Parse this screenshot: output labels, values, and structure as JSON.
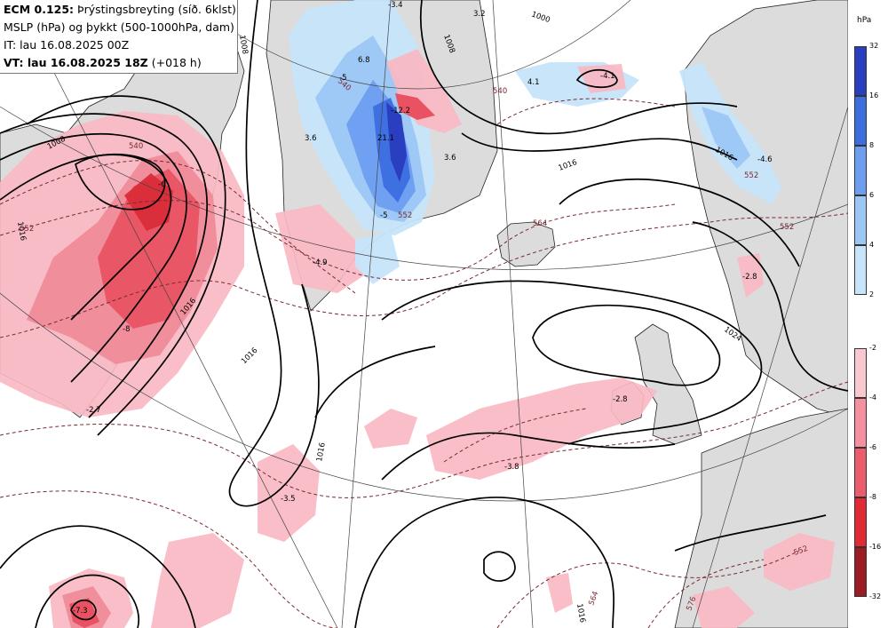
{
  "header": {
    "model": "ECM 0.125:",
    "title_rest": "Þrýstingsbreyting (síð. 6klst)",
    "line2": "MSLP (hPa) og þykkt (500-1000hPa, dam)",
    "line3": "IT: lau 16.08.2025 00Z",
    "vt_label": "VT: lau 16.08.2025 18Z",
    "vt_offset": "(+018 h)"
  },
  "legend": {
    "unit": "hPa",
    "positive": {
      "ticks": [
        "32",
        "16",
        "8",
        "6",
        "4",
        "2"
      ],
      "colors": [
        "#2a3ec0",
        "#3c6ee0",
        "#6d9ef0",
        "#9cc6f4",
        "#c6e4fa"
      ]
    },
    "negative": {
      "ticks": [
        "-2",
        "-4",
        "-6",
        "-8",
        "-16",
        "-32"
      ],
      "colors": [
        "#fac8d0",
        "#f490a0",
        "#ec5c6c",
        "#e02a34",
        "#9c1c24"
      ]
    }
  },
  "map": {
    "isobar_labels": [
      "1008",
      "1016",
      "1016",
      "1016",
      "1016",
      "1024",
      "1016",
      "1016",
      "1016",
      "1008",
      "1000",
      "1008"
    ],
    "thickness_labels": [
      "540",
      "540",
      "552",
      "552",
      "552",
      "564",
      "552",
      "564",
      "576",
      "540",
      "552"
    ],
    "change_labels": [
      "-3.4",
      "3.2",
      "6.8",
      "-5",
      "-12.2",
      "21.1",
      "3.6",
      "-4.1",
      "4.1",
      "-6",
      "-8",
      "-2.7",
      "-4.9",
      "-3.5",
      "-3.8",
      "-2.8",
      "-2.8",
      "-7.3",
      "-4.6",
      "-5",
      "3.6"
    ]
  }
}
